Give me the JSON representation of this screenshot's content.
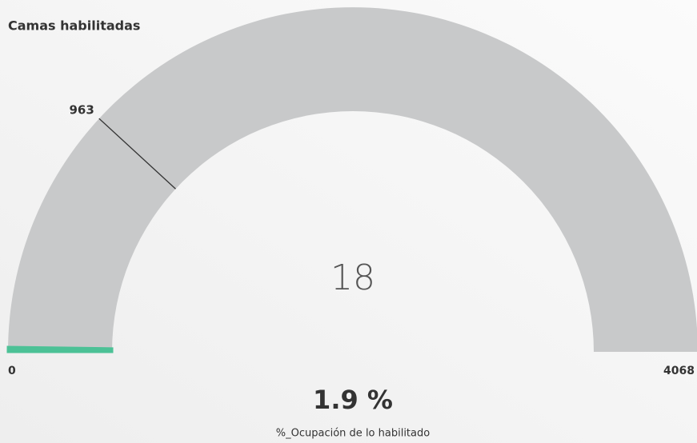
{
  "chart_data": {
    "type": "gauge",
    "title": "Camas habilitadas",
    "value": 18,
    "target": 963,
    "min": 0,
    "max": 4068,
    "color": "#4cc196",
    "track_color": "#c8c9ca",
    "target_color": "#333333",
    "kpi": "1.9 %",
    "kpi_label": "%_Ocupación de lo habilitado"
  }
}
